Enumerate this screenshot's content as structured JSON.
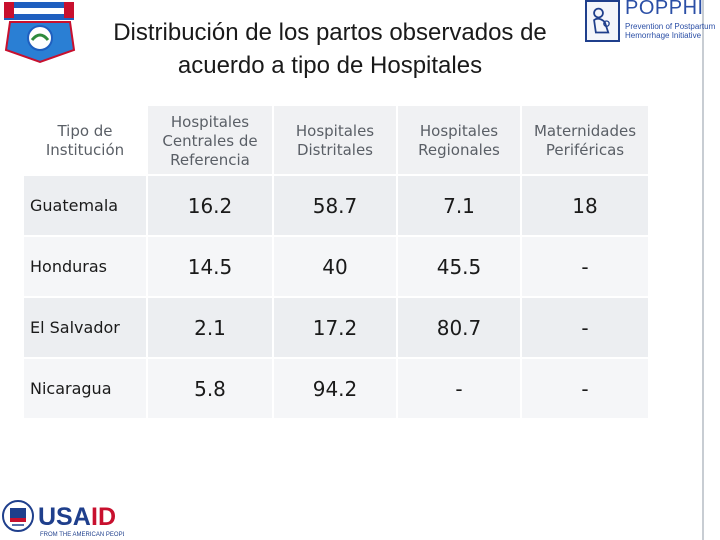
{
  "title": "Distribución de los partos observados de acuerdo a tipo de Hospitales",
  "logos": {
    "popphi_brand": "POPPHI",
    "popphi_tagline": "Prevention of Postpartum Hemorrhage Initiative",
    "usaid_brand": "USAID",
    "usaid_tagline": "FROM THE AMERICAN PEOPLE"
  },
  "table": {
    "headers": [
      "Tipo de Institución",
      "Hospitales Centrales de Referencia",
      "Hospitales Distritales",
      "Hospitales Regionales",
      "Maternidades Periféricas"
    ],
    "rows": [
      {
        "country": "Guatemala",
        "values": [
          "16.2",
          "58.7",
          "7.1",
          "18"
        ]
      },
      {
        "country": "Honduras",
        "values": [
          "14.5",
          "40",
          "45.5",
          "-"
        ]
      },
      {
        "country": "El Salvador",
        "values": [
          "2.1",
          "17.2",
          "80.7",
          "-"
        ]
      },
      {
        "country": "Nicaragua",
        "values": [
          "5.8",
          "94.2",
          "-",
          "-"
        ]
      }
    ]
  },
  "colors": {
    "header_text": "#5a5f66",
    "cell_alt_light": "#f5f6f8",
    "cell_alt_dark": "#eceef1",
    "popphi_blue": "#2b4fa6",
    "usaid_blue": "#1f3f8c",
    "usaid_red": "#c8102e"
  }
}
